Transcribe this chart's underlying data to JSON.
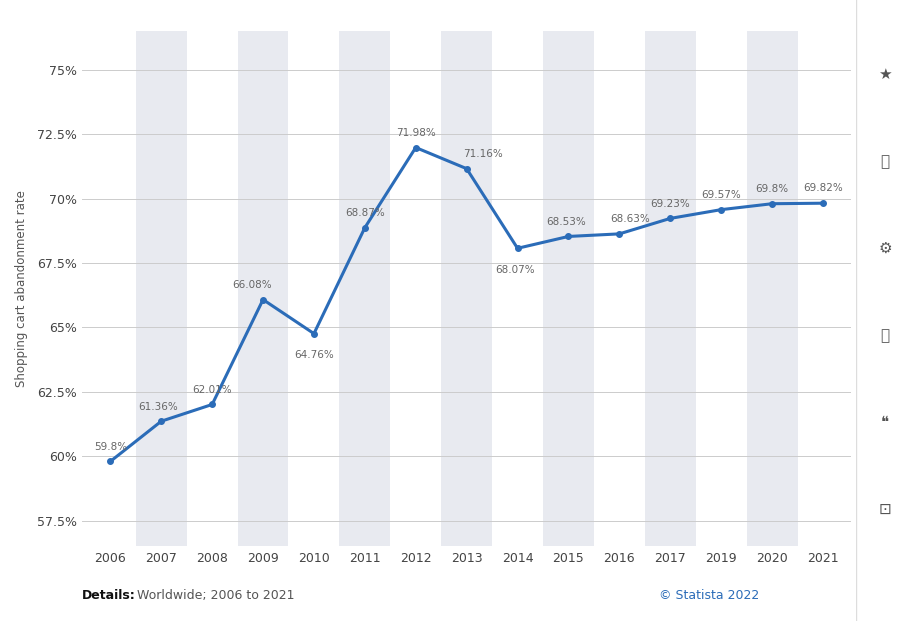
{
  "years": [
    2006,
    2007,
    2008,
    2009,
    2010,
    2011,
    2012,
    2013,
    2014,
    2015,
    2016,
    2017,
    2019,
    2020,
    2021
  ],
  "values": [
    59.8,
    61.36,
    62.01,
    66.08,
    64.76,
    68.87,
    71.98,
    71.16,
    68.07,
    68.53,
    68.63,
    69.23,
    69.57,
    69.8,
    69.82
  ],
  "labels": [
    "59.8%",
    "61.36%",
    "62.01%",
    "66.08%",
    "64.76%",
    "68.87%",
    "71.98%",
    "71.16%",
    "68.07%",
    "68.53%",
    "68.63%",
    "69.23%",
    "69.57%",
    "69.8%",
    "69.82%"
  ],
  "line_color": "#2b6cb8",
  "line_width": 2.2,
  "marker_size": 4,
  "ylabel": "Shopping cart abandonment rate",
  "yticks": [
    57.5,
    60.0,
    62.5,
    65.0,
    67.5,
    70.0,
    72.5,
    75.0
  ],
  "ytick_labels": [
    "57.5%",
    "60%",
    "62.5%",
    "65%",
    "67.5%",
    "70%",
    "72.5%",
    "75%"
  ],
  "ylim": [
    56.5,
    76.5
  ],
  "background_color": "#ffffff",
  "panel_color": "#e8eaf0",
  "grid_color": "#cccccc",
  "label_color": "#666666",
  "label_fontsize": 7.5,
  "axis_fontsize": 9,
  "ylabel_fontsize": 8.5,
  "details_bold": "Details:",
  "details_regular": " Worldwide; 2006 to 2021",
  "copyright_text": "© Statista 2022",
  "copyright_color": "#2b6cb8",
  "shaded_years": [
    2007,
    2009,
    2011,
    2013,
    2015,
    2017,
    2020
  ]
}
